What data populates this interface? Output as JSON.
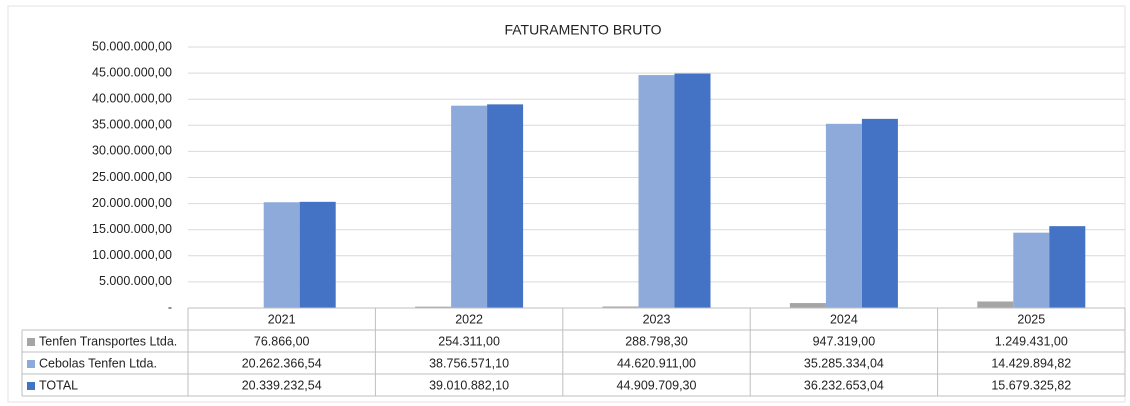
{
  "chart_data": {
    "type": "bar",
    "title": "FATURAMENTO BRUTO",
    "categories": [
      "2021",
      "2022",
      "2023",
      "2024",
      "2025"
    ],
    "series": [
      {
        "name": "Tenfen Transportes Ltda.",
        "color": "#a5a5a5",
        "values": [
          76866.0,
          254311.0,
          288798.3,
          947319.0,
          1249431.0
        ],
        "value_labels": [
          "76.866,00",
          "254.311,00",
          "288.798,30",
          "947.319,00",
          "1.249.431,00"
        ]
      },
      {
        "name": "Cebolas Tenfen Ltda.",
        "color": "#8eaadb",
        "values": [
          20262366.54,
          38756571.1,
          44620911.0,
          35285334.04,
          14429894.82
        ],
        "value_labels": [
          "20.262.366,54",
          "38.756.571,10",
          "44.620.911,00",
          "35.285.334,04",
          "14.429.894,82"
        ]
      },
      {
        "name": "TOTAL",
        "color": "#4472c4",
        "values": [
          20339232.54,
          39010882.1,
          44909709.3,
          36232653.04,
          15679325.82
        ],
        "value_labels": [
          "20.339.232,54",
          "39.010.882,10",
          "44.909.709,30",
          "36.232.653,04",
          "15.679.325,82"
        ]
      }
    ],
    "ylim": [
      0,
      50000000
    ],
    "yticks": [
      {
        "value": 0,
        "label": "-"
      },
      {
        "value": 5000000,
        "label": "5.000.000,00"
      },
      {
        "value": 10000000,
        "label": "10.000.000,00"
      },
      {
        "value": 15000000,
        "label": "15.000.000,00"
      },
      {
        "value": 20000000,
        "label": "20.000.000,00"
      },
      {
        "value": 25000000,
        "label": "25.000.000,00"
      },
      {
        "value": 30000000,
        "label": "30.000.000,00"
      },
      {
        "value": 35000000,
        "label": "35.000.000,00"
      },
      {
        "value": 40000000,
        "label": "40.000.000,00"
      },
      {
        "value": 45000000,
        "label": "45.000.000,00"
      },
      {
        "value": 50000000,
        "label": "50.000.000,00"
      }
    ],
    "grid": true
  }
}
